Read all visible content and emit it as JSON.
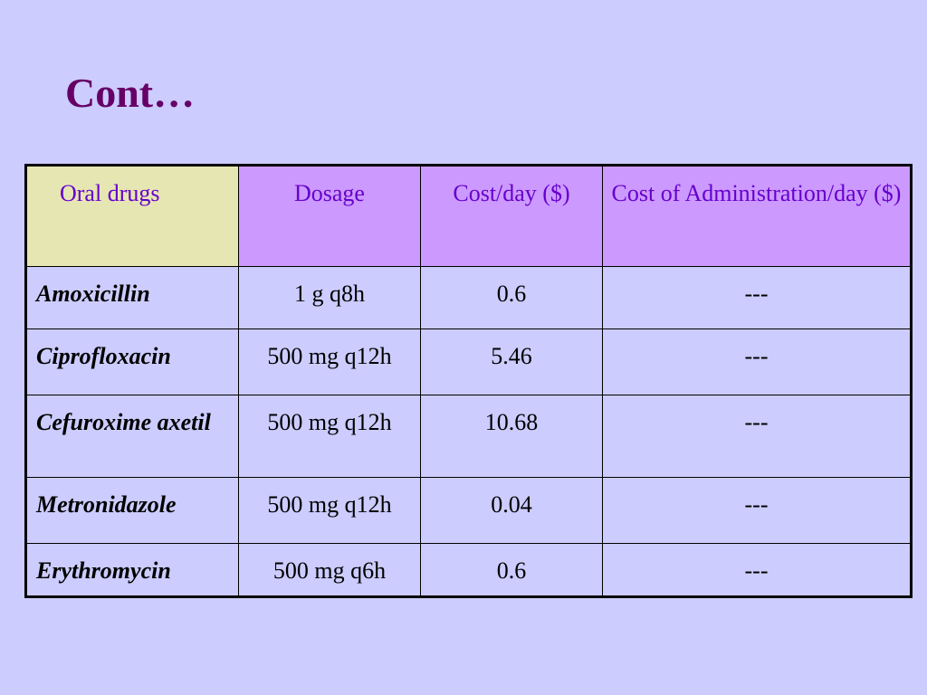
{
  "title": "Cont…",
  "table": {
    "headers": [
      "Oral drugs",
      "Dosage",
      "Cost/day ($)",
      "Cost of Administration/day ($)"
    ],
    "rows": [
      {
        "drug": "Amoxicillin",
        "dosage": "1 g q8h",
        "cost": "0.6",
        "admin": "---"
      },
      {
        "drug": "Ciprofloxacin",
        "dosage": "500 mg q12h",
        "cost": "5.46",
        "admin": "---"
      },
      {
        "drug": "Cefuroxime axetil",
        "dosage": "500 mg q12h",
        "cost": "10.68",
        "admin": "---"
      },
      {
        "drug": "Metronidazole",
        "dosage": "500 mg q12h",
        "cost": "0.04",
        "admin": "---"
      },
      {
        "drug": "Erythromycin",
        "dosage": "500 mg q6h",
        "cost": "0.6",
        "admin": "---"
      }
    ]
  },
  "colors": {
    "background": "#ccccff",
    "title": "#660066",
    "header_text": "#6600cc",
    "header_fill": "#cc99ff",
    "first_header_fill": "#e6e6b3"
  }
}
